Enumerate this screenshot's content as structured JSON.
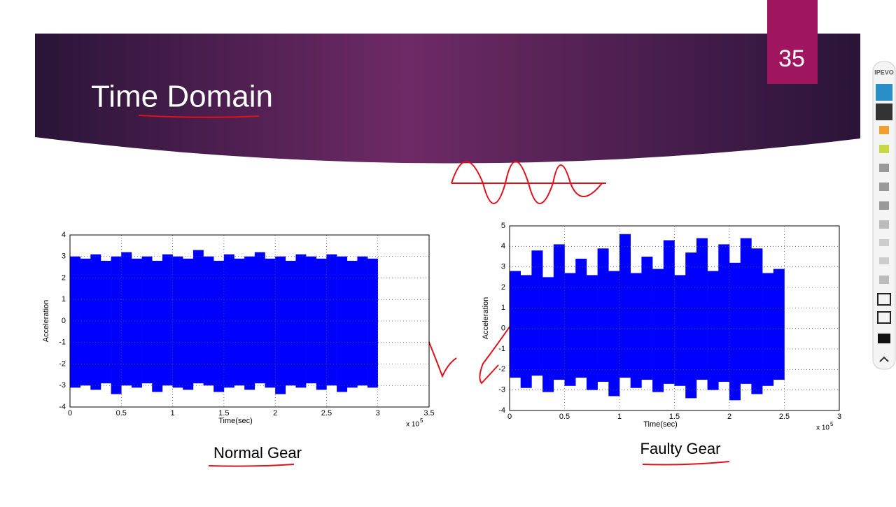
{
  "slide": {
    "title": "Time Domain",
    "number": "35",
    "captions": [
      "Normal Gear",
      "Faulty Gear"
    ]
  },
  "toolbar": {
    "brand": "IPEVO"
  },
  "chart_data": [
    {
      "type": "range",
      "x_label": "Time(sec)",
      "y_label": "Acceleration",
      "x_multiplier": "x 10",
      "x_multiplier_exp": "5",
      "color": "#0000ff",
      "grid": true,
      "xlim": [
        0,
        3.5
      ],
      "xticks": [
        0,
        0.5,
        1,
        1.5,
        2,
        2.5,
        3,
        3.5
      ],
      "ylim": [
        -4,
        4
      ],
      "yticks": [
        -4,
        -3,
        -2,
        -1,
        0,
        1,
        2,
        3,
        4
      ],
      "x": [
        0,
        0.1,
        0.2,
        0.3,
        0.4,
        0.5,
        0.6,
        0.7,
        0.8,
        0.9,
        1,
        1.1,
        1.2,
        1.3,
        1.4,
        1.5,
        1.6,
        1.7,
        1.8,
        1.9,
        2,
        2.1,
        2.2,
        2.3,
        2.4,
        2.5,
        2.6,
        2.7,
        2.8,
        2.9
      ],
      "high": [
        3.0,
        2.9,
        3.1,
        2.8,
        3.0,
        3.2,
        2.9,
        3.0,
        2.8,
        3.1,
        3.0,
        2.9,
        3.3,
        3.0,
        2.8,
        3.1,
        2.9,
        3.0,
        3.2,
        2.9,
        3.0,
        2.8,
        3.1,
        3.0,
        2.9,
        3.1,
        3.0,
        2.8,
        3.0,
        2.9
      ],
      "low": [
        -3.1,
        -3.0,
        -3.2,
        -2.9,
        -3.4,
        -3.0,
        -3.1,
        -2.9,
        -3.3,
        -3.0,
        -3.1,
        -3.2,
        -2.9,
        -3.0,
        -3.3,
        -3.1,
        -3.0,
        -3.2,
        -2.9,
        -3.1,
        -3.4,
        -3.0,
        -3.1,
        -2.9,
        -3.2,
        -3.0,
        -3.3,
        -3.1,
        -3.0,
        -3.1
      ]
    },
    {
      "type": "range",
      "x_label": "Time(sec)",
      "y_label": "Acceleration",
      "x_multiplier": "x 10",
      "x_multiplier_exp": "5",
      "color": "#0000ff",
      "grid": true,
      "xlim": [
        0,
        3
      ],
      "xticks": [
        0,
        0.5,
        1,
        1.5,
        2,
        2.5,
        3
      ],
      "ylim": [
        -4,
        5
      ],
      "yticks": [
        -4,
        -3,
        -2,
        -1,
        0,
        1,
        2,
        3,
        4,
        5
      ],
      "x": [
        0,
        0.1,
        0.2,
        0.3,
        0.4,
        0.5,
        0.6,
        0.7,
        0.8,
        0.9,
        1,
        1.1,
        1.2,
        1.3,
        1.4,
        1.5,
        1.6,
        1.7,
        1.8,
        1.9,
        2,
        2.1,
        2.2,
        2.3,
        2.4
      ],
      "high": [
        2.8,
        2.6,
        3.8,
        2.5,
        4.1,
        2.7,
        3.4,
        2.6,
        3.9,
        2.8,
        4.6,
        2.7,
        3.5,
        2.9,
        4.3,
        2.6,
        3.7,
        4.4,
        2.8,
        4.1,
        3.2,
        4.4,
        3.9,
        2.7,
        2.9
      ],
      "low": [
        -2.4,
        -2.9,
        -2.3,
        -3.1,
        -2.5,
        -2.8,
        -2.4,
        -3.0,
        -2.6,
        -3.3,
        -2.4,
        -2.9,
        -2.5,
        -3.1,
        -2.7,
        -2.8,
        -3.4,
        -2.5,
        -3.0,
        -2.6,
        -3.5,
        -2.7,
        -3.2,
        -2.8,
        -2.5
      ]
    }
  ]
}
